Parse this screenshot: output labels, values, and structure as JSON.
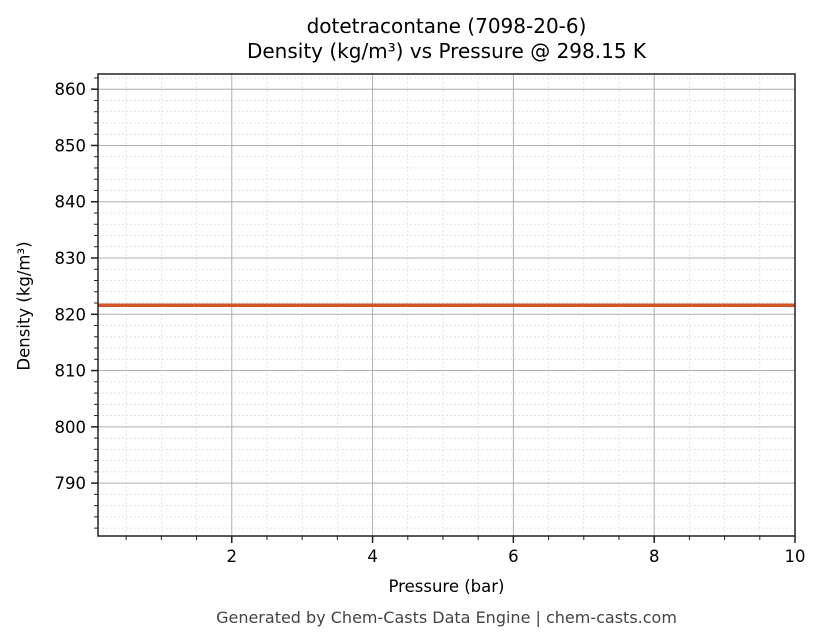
{
  "chart_data": {
    "type": "line",
    "title": "dotetracontane (7098-20-6)",
    "subtitle": "Density (kg/m³) vs Pressure @ 298.15 K",
    "xlabel": "Pressure (bar)",
    "ylabel": "Density (kg/m³)",
    "xlim": [
      0.1,
      10
    ],
    "ylim": [
      780.6,
      862.7
    ],
    "x_ticks": [
      2,
      4,
      6,
      8,
      10
    ],
    "y_ticks": [
      790,
      800,
      810,
      820,
      830,
      840,
      850,
      860
    ],
    "x_minor_step": 0.5,
    "y_minor_step": 2,
    "grid": true,
    "legend": null,
    "series": [
      {
        "name": "Density",
        "color": "#d0562a",
        "x": [
          0.1,
          1,
          2,
          3,
          4,
          5,
          6,
          7,
          8,
          9,
          10
        ],
        "values": [
          821.6,
          821.6,
          821.6,
          821.6,
          821.6,
          821.6,
          821.6,
          821.6,
          821.6,
          821.6,
          821.6
        ]
      }
    ]
  },
  "footer": "Generated by Chem-Casts Data Engine | chem-casts.com"
}
